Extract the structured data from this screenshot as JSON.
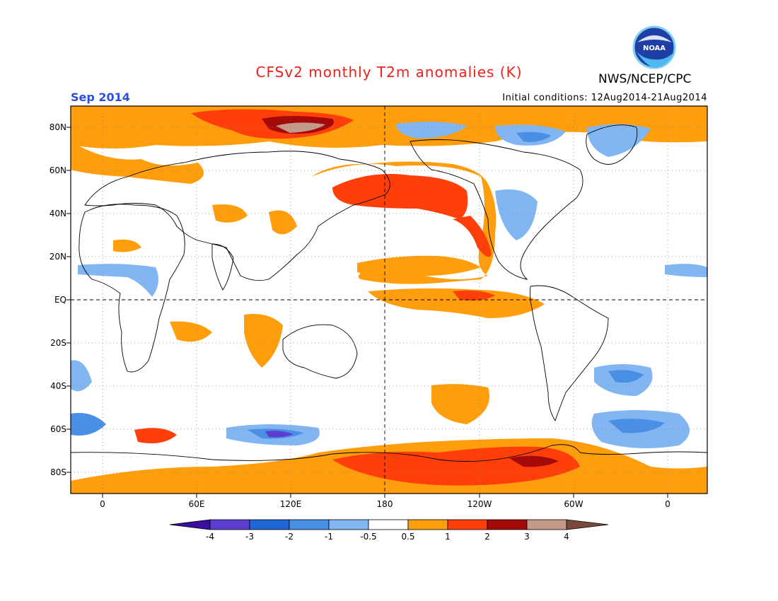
{
  "header": {
    "title": "CFSv2 monthly T2m anomalies (K)",
    "title_color": "#e8231b",
    "organization": "NWS/NCEP/CPC",
    "valid_month": "Sep 2014",
    "valid_month_color": "#2b4fd6",
    "initial_conditions": "Initial conditions: 12Aug2014-21Aug2014"
  },
  "logo": {
    "icon": "noaa-logo-icon",
    "text": "NOAA"
  },
  "map": {
    "projection": "cylindrical equidistant",
    "lon_range": [
      -20,
      380
    ],
    "lat_range": [
      -90,
      90
    ],
    "lat_labels": [
      "80N",
      "60N",
      "40N",
      "20N",
      "EQ",
      "20S",
      "40S",
      "60S",
      "80S"
    ],
    "lon_labels": [
      "0",
      "60E",
      "120E",
      "180",
      "120W",
      "60W",
      "0"
    ],
    "grid": "dotted"
  },
  "colorbar": {
    "labels": [
      "-4",
      "-3",
      "-2",
      "-1",
      "-0.5",
      "0.5",
      "1",
      "2",
      "3",
      "4"
    ],
    "colors": [
      "#3a0fa0",
      "#5b3ed0",
      "#2166d6",
      "#4a8fe6",
      "#82b6f2",
      "#ffffff",
      "#ff9e0d",
      "#ff3f0a",
      "#a50a0a",
      "#c49a8a",
      "#7a4a3a"
    ]
  }
}
